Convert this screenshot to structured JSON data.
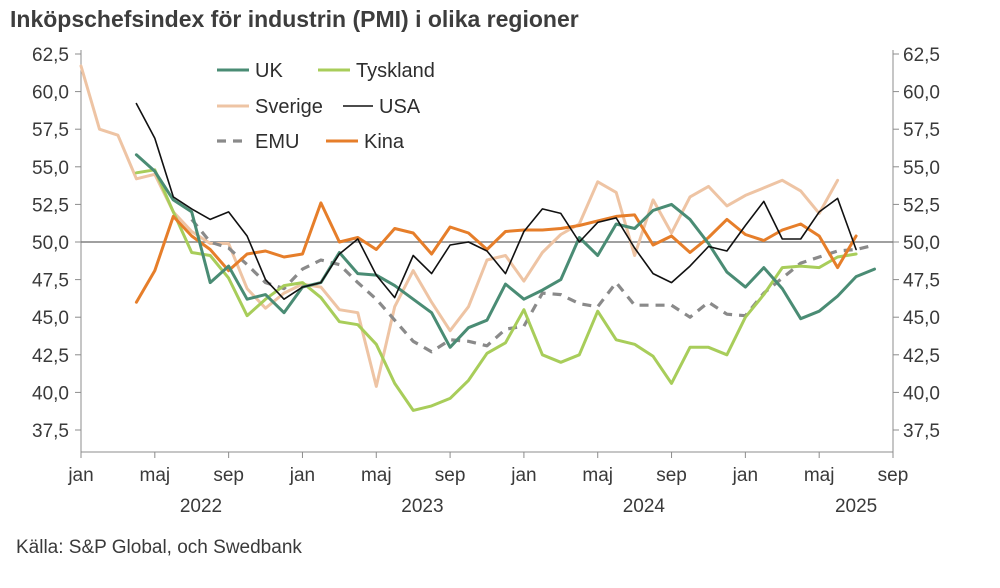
{
  "chart_data": {
    "type": "line",
    "title": "Inköpschefsindex för industrin (PMI) i olika regioner",
    "source": "Källa: S&P Global, och Swedbank",
    "xlabel": "",
    "ylabel": "",
    "ylim": [
      37.5,
      62.5
    ],
    "y_ticks": [
      37.5,
      40.0,
      42.5,
      45.0,
      47.5,
      50.0,
      52.5,
      55.0,
      57.5,
      60.0,
      62.5
    ],
    "y_tick_labels": [
      "37,5",
      "40,0",
      "42,5",
      "45,0",
      "47,5",
      "50,0",
      "52,5",
      "55,0",
      "57,5",
      "60,0",
      "62,5"
    ],
    "reference_line": 50.0,
    "x_start": "2022-01",
    "x_tick_labels": [
      {
        "m": 0,
        "label": "jan"
      },
      {
        "m": 4,
        "label": "maj"
      },
      {
        "m": 8,
        "label": "sep"
      },
      {
        "m": 12,
        "label": "jan"
      },
      {
        "m": 16,
        "label": "maj"
      },
      {
        "m": 20,
        "label": "sep"
      },
      {
        "m": 24,
        "label": "jan"
      },
      {
        "m": 28,
        "label": "maj"
      },
      {
        "m": 32,
        "label": "sep"
      },
      {
        "m": 36,
        "label": "jan"
      },
      {
        "m": 40,
        "label": "maj"
      },
      {
        "m": 44,
        "label": "sep"
      }
    ],
    "year_labels": [
      {
        "m": 6.5,
        "label": "2022"
      },
      {
        "m": 18.5,
        "label": "2023"
      },
      {
        "m": 30.5,
        "label": "2024"
      },
      {
        "m": 42,
        "label": "2025"
      }
    ],
    "grid": false,
    "legend_position": "top-left",
    "series": [
      {
        "name": "UK",
        "color": "#4a8c74",
        "dash": "",
        "width": 3,
        "start": 3,
        "values": [
          55.8,
          54.7,
          52.8,
          52.0,
          47.3,
          48.4,
          46.2,
          46.5,
          45.3,
          47.0,
          47.3,
          49.3,
          47.9,
          47.8,
          47.1,
          46.2,
          45.3,
          43.0,
          44.3,
          44.8,
          47.2,
          46.2,
          46.8,
          47.5,
          50.3,
          49.1,
          51.2,
          50.9,
          52.1,
          52.5,
          51.5,
          49.9,
          48.0,
          47.0,
          48.3,
          46.9,
          44.9,
          45.4,
          46.4,
          47.7,
          48.2
        ]
      },
      {
        "name": "Tyskland",
        "color": "#a8cd5a",
        "dash": "",
        "width": 3,
        "start": 3,
        "values": [
          54.6,
          54.8,
          52.0,
          49.3,
          49.1,
          47.6,
          45.1,
          46.2,
          47.1,
          47.3,
          46.3,
          44.7,
          44.5,
          43.2,
          40.6,
          38.8,
          39.1,
          39.6,
          40.8,
          42.6,
          43.3,
          45.5,
          42.5,
          42.0,
          42.5,
          45.4,
          43.5,
          43.2,
          42.4,
          40.6,
          43.0,
          43.0,
          42.5,
          45.0,
          46.5,
          48.3,
          48.4,
          48.3,
          49.0,
          49.2
        ]
      },
      {
        "name": "Sverige",
        "color": "#eec4a4",
        "dash": "",
        "width": 3,
        "start": 0,
        "values": [
          61.7,
          57.5,
          57.1,
          54.2,
          54.5,
          52.0,
          50.7,
          49.9,
          49.9,
          46.9,
          45.6,
          46.6,
          47.2,
          47.0,
          45.5,
          45.3,
          40.4,
          45.7,
          48.1,
          46.0,
          44.1,
          45.7,
          48.8,
          49.1,
          47.4,
          49.3,
          50.5,
          51.2,
          54.0,
          53.3,
          49.1,
          52.8,
          50.6,
          53.0,
          53.7,
          52.4,
          53.1,
          53.6,
          54.1,
          53.4,
          51.9,
          54.1
        ]
      },
      {
        "name": "USA",
        "color": "#111111",
        "dash": "",
        "width": 1.6,
        "start": 3,
        "values": [
          59.2,
          56.9,
          53.0,
          52.2,
          51.5,
          52.0,
          50.4,
          47.5,
          46.2,
          47.0,
          47.3,
          49.2,
          50.2,
          47.8,
          46.3,
          49.1,
          47.9,
          49.8,
          50.0,
          49.4,
          47.9,
          50.7,
          52.2,
          51.9,
          50.0,
          51.3,
          51.6,
          49.6,
          47.9,
          47.3,
          48.4,
          49.7,
          49.4,
          51.1,
          52.7,
          50.2,
          50.2,
          52.0,
          52.9,
          49.5
        ]
      },
      {
        "name": "EMU",
        "color": "#8a8a8a",
        "dash": "9,7",
        "width": 3.2,
        "start": 6,
        "values": [
          51.5,
          50.0,
          49.6,
          48.5,
          47.3,
          46.9,
          48.2,
          48.8,
          48.5,
          47.3,
          46.2,
          44.8,
          43.4,
          42.7,
          43.5,
          43.4,
          43.1,
          44.2,
          44.4,
          46.6,
          46.5,
          45.9,
          45.7,
          47.3,
          45.8,
          45.8,
          45.8,
          45.0,
          46.0,
          45.2,
          45.1,
          46.6,
          47.6,
          48.6,
          49.0,
          49.4,
          49.5,
          49.8
        ]
      },
      {
        "name": "Kina",
        "color": "#e67e2a",
        "dash": "",
        "width": 3,
        "start": 3,
        "values": [
          46.0,
          48.1,
          51.7,
          50.4,
          49.5,
          48.1,
          49.2,
          49.4,
          49.0,
          49.2,
          52.6,
          50.0,
          50.3,
          49.5,
          50.9,
          50.6,
          49.2,
          51.0,
          50.6,
          49.5,
          50.7,
          50.8,
          50.8,
          50.9,
          51.1,
          51.4,
          51.7,
          51.8,
          49.8,
          50.4,
          49.3,
          50.3,
          51.5,
          50.5,
          50.1,
          50.8,
          51.2,
          50.4,
          48.3,
          50.4
        ]
      }
    ],
    "legend_rows": [
      [
        "UK",
        "Tyskland"
      ],
      [
        "Sverige",
        "USA"
      ],
      [
        "EMU",
        "Kina"
      ]
    ]
  }
}
